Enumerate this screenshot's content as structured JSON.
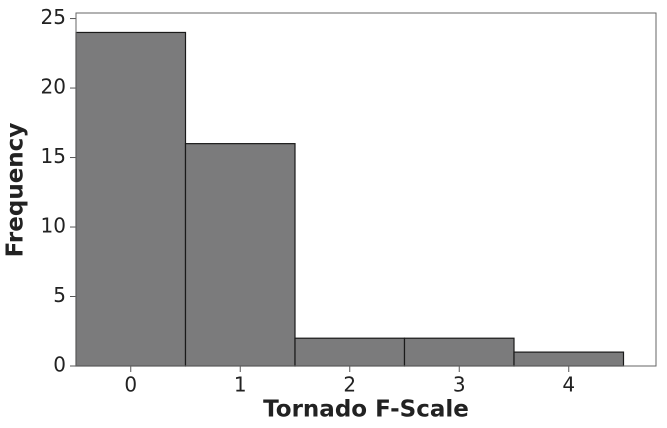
{
  "chart_data": {
    "type": "bar",
    "x_label": "Tornado F-Scale",
    "y_label": "Frequency",
    "categories": [
      "0",
      "1",
      "2",
      "3",
      "4"
    ],
    "values": [
      24,
      16,
      2,
      2,
      1
    ],
    "color": "#7b7b7c",
    "ylim": [
      0,
      25.4
    ],
    "yticks": [
      0,
      5,
      10,
      15,
      20,
      25
    ]
  }
}
